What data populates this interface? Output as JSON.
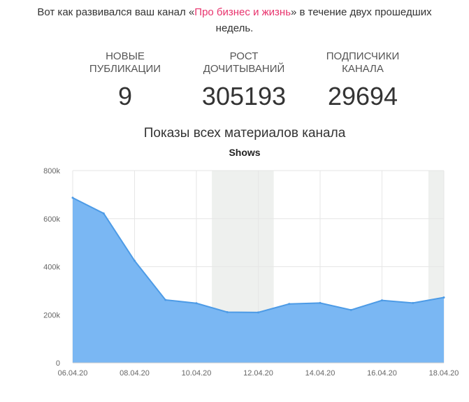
{
  "intro": {
    "before": "Вот как развивался ваш канал «",
    "link": "Про бизнес и жизнь",
    "after": "» в течение двух прошедших недель."
  },
  "stats": [
    {
      "label": "Новые публикации",
      "value": "9"
    },
    {
      "label": "Рост дочитываний",
      "value": "305193"
    },
    {
      "label": "Подписчики канала",
      "value": "29694"
    }
  ],
  "chart_title": "Показы всех материалов канала",
  "chart_data": {
    "type": "area",
    "subtitle": "Shows",
    "series": [
      {
        "name": "",
        "x": [
          "06.04.20",
          "07.04.20",
          "08.04.20",
          "09.04.20",
          "10.04.20",
          "11.04.20",
          "12.04.20",
          "13.04.20",
          "14.04.20",
          "15.04.20",
          "16.04.20",
          "17.04.20",
          "18.04.20"
        ],
        "values": [
          687000,
          622000,
          425000,
          262000,
          248000,
          211000,
          210000,
          245000,
          249000,
          220000,
          260000,
          249000,
          272000
        ]
      }
    ],
    "x_tick_labels": [
      "06.04.20",
      "08.04.20",
      "10.04.20",
      "12.04.20",
      "14.04.20",
      "16.04.20",
      "18.04.20"
    ],
    "y_tick_labels": [
      "0",
      "200k",
      "400k",
      "600k",
      "800k"
    ],
    "ylim": [
      0,
      800000
    ],
    "highlight_ranges": [
      [
        "11.04.20",
        "12.04.20"
      ],
      [
        "18.04.20",
        "18.04.20"
      ]
    ],
    "grid": true,
    "colors": {
      "fill": "#7ab7f3",
      "line": "#4d9be6",
      "highlight": "#eef0ee",
      "grid": "#e6e6e6"
    }
  }
}
